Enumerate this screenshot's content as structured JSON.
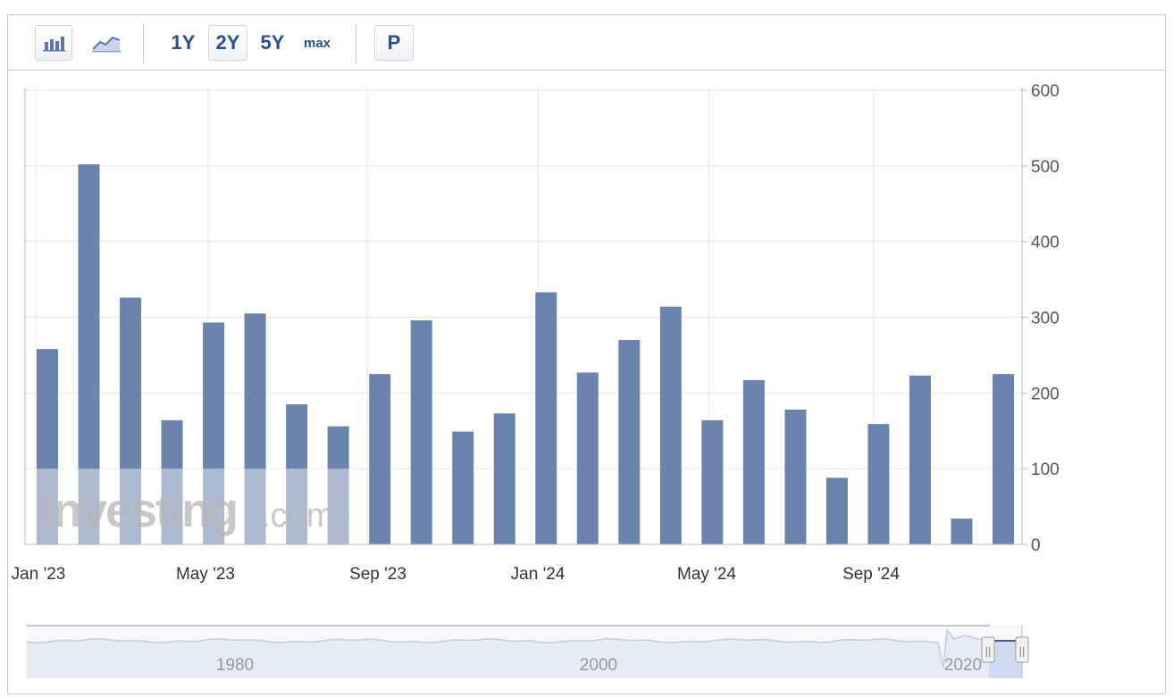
{
  "toolbar": {
    "bar_icon": "bar-chart-icon",
    "line_icon": "line-chart-icon",
    "ranges": [
      "1Y",
      "2Y",
      "5Y",
      "max"
    ],
    "active_range": "2Y",
    "print_label": "P"
  },
  "watermark": {
    "brand": "Investing",
    "suffix": ".com"
  },
  "colors": {
    "bar": "#6b84ad",
    "grid": "#e6e6e6",
    "axis_text": "#555555",
    "range_text": "#2a4f8f"
  },
  "chart_data": {
    "type": "bar",
    "x_tick_labels": [
      "Jan '23",
      "May '23",
      "Sep '23",
      "Jan '24",
      "May '24",
      "Sep '24"
    ],
    "categories": [
      "Jan '23",
      "Feb '23",
      "Mar '23",
      "Apr '23",
      "May '23",
      "Jun '23",
      "Jul '23",
      "Aug '23",
      "Sep '23",
      "Oct '23",
      "Nov '23",
      "Dec '23",
      "Jan '24",
      "Feb '24",
      "Mar '24",
      "Apr '24",
      "May '24",
      "Jun '24",
      "Jul '24",
      "Aug '24",
      "Sep '24",
      "Oct '24",
      "Nov '24",
      "Dec '24"
    ],
    "values": [
      258,
      502,
      326,
      164,
      293,
      305,
      185,
      156,
      225,
      296,
      149,
      173,
      333,
      227,
      270,
      314,
      164,
      217,
      178,
      88,
      159,
      223,
      34,
      225
    ],
    "ylim": [
      0,
      600
    ],
    "y_ticks": [
      0,
      100,
      200,
      300,
      400,
      500,
      600
    ],
    "y_axis_side": "right",
    "grid": true
  },
  "navigator": {
    "labels": [
      "1980",
      "2000",
      "2020"
    ],
    "handle_glyph": "||"
  }
}
